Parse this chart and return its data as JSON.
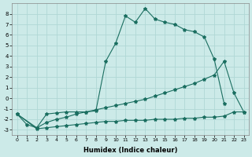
{
  "xlabel": "Humidex (Indice chaleur)",
  "bg_color": "#cceae8",
  "grid_color": "#b0d8d5",
  "line_color": "#1a6e60",
  "xlim": [
    -0.5,
    23.5
  ],
  "ylim": [
    -3.5,
    9.0
  ],
  "yticks": [
    -3,
    -2,
    -1,
    0,
    1,
    2,
    3,
    4,
    5,
    6,
    7,
    8
  ],
  "xticks": [
    0,
    1,
    2,
    3,
    4,
    5,
    6,
    7,
    8,
    9,
    10,
    11,
    12,
    13,
    14,
    15,
    16,
    17,
    18,
    19,
    20,
    21,
    22,
    23
  ],
  "series1_x": [
    0,
    1,
    2,
    3,
    4,
    5,
    6,
    7,
    8,
    9,
    10,
    11,
    12,
    13,
    14,
    15,
    16,
    17,
    18,
    19,
    20,
    21
  ],
  "series1_y": [
    -1.5,
    -2.5,
    -2.8,
    -1.5,
    -1.4,
    -1.3,
    -1.3,
    -1.3,
    -1.2,
    3.5,
    5.2,
    7.8,
    7.2,
    8.5,
    7.5,
    7.2,
    7.0,
    6.5,
    6.3,
    5.8,
    3.7,
    -0.5
  ],
  "series2_x": [
    0,
    2,
    3,
    4,
    5,
    6,
    7,
    8,
    9,
    10,
    11,
    12,
    13,
    14,
    15,
    16,
    17,
    18,
    19,
    20,
    21,
    22,
    23
  ],
  "series2_y": [
    -1.5,
    -2.8,
    -2.3,
    -2.0,
    -1.8,
    -1.5,
    -1.3,
    -1.1,
    -0.9,
    -0.7,
    -0.5,
    -0.3,
    -0.1,
    0.2,
    0.5,
    0.8,
    1.1,
    1.4,
    1.8,
    2.2,
    3.5,
    0.5,
    -1.3
  ],
  "series3_x": [
    0,
    2,
    3,
    4,
    5,
    6,
    7,
    8,
    9,
    10,
    11,
    12,
    13,
    14,
    15,
    16,
    17,
    18,
    19,
    20,
    21,
    22,
    23
  ],
  "series3_y": [
    -1.5,
    -2.9,
    -2.8,
    -2.7,
    -2.6,
    -2.5,
    -2.4,
    -2.3,
    -2.2,
    -2.2,
    -2.1,
    -2.1,
    -2.1,
    -2.0,
    -2.0,
    -2.0,
    -1.9,
    -1.9,
    -1.8,
    -1.8,
    -1.7,
    -1.3,
    -1.3
  ],
  "marker": "*",
  "marker_size": 3,
  "linewidth": 0.8
}
